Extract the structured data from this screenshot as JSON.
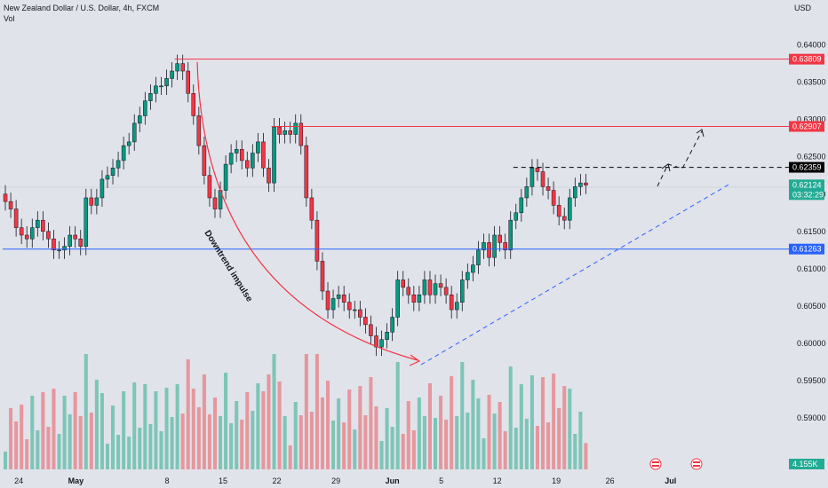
{
  "header": {
    "symbol_title": "New Zealand Dollar / U.S. Dollar, 4h, FXCM",
    "volume_label": "Vol",
    "currency": "USD"
  },
  "annotation": {
    "impulse_text": "Downtrend impulse"
  },
  "price_axis": {
    "min": 0.585,
    "max": 0.6415,
    "ticks": [
      "0.64000",
      "0.63500",
      "0.63000",
      "0.62500",
      "0.62000",
      "0.61500",
      "0.61000",
      "0.60500",
      "0.60000",
      "0.59500",
      "0.59000"
    ]
  },
  "time_axis": {
    "ticks": [
      {
        "label": "24",
        "bar": 3
      },
      {
        "label": "May",
        "bar": 13
      },
      {
        "label": "8",
        "bar": 31
      },
      {
        "label": "15",
        "bar": 41
      },
      {
        "label": "22",
        "bar": 51
      },
      {
        "label": "29",
        "bar": 62
      },
      {
        "label": "Jun",
        "bar": 72
      },
      {
        "label": "5",
        "bar": 82
      },
      {
        "label": "12",
        "bar": 92
      },
      {
        "label": "19",
        "bar": 103
      },
      {
        "label": "26",
        "bar": 113
      },
      {
        "label": "Jul",
        "bar": 124
      }
    ]
  },
  "levels": [
    {
      "name": "resistance-top",
      "value": 0.63809,
      "label": "0.63809",
      "color": "#f23645",
      "from_bar": 32
    },
    {
      "name": "resistance-mid",
      "value": 0.62907,
      "label": "0.62907",
      "color": "#f23645",
      "from_bar": 50
    },
    {
      "name": "target-dashed",
      "value": 0.62359,
      "label": "0.62359",
      "color": "#000000",
      "from_bar": 95,
      "dashed": true
    },
    {
      "name": "support",
      "value": 0.61263,
      "label": "0.61263",
      "color": "#2962ff",
      "from_bar": 0
    }
  ],
  "current": {
    "value": 0.62124,
    "label": "0.62124",
    "countdown": "03:32:29",
    "color": "#22ab94"
  },
  "volume_tag": {
    "label": "4.155K"
  },
  "chart_data": {
    "type": "candlestick",
    "title": "New Zealand Dollar / U.S. Dollar, 4h, FXCM",
    "x_axis_ticks": [
      "24",
      "May",
      "8",
      "15",
      "22",
      "29",
      "Jun",
      "5",
      "12",
      "19",
      "26",
      "Jul"
    ],
    "y_range": [
      0.585,
      0.6415
    ],
    "close": [
      0.619,
      0.618,
      0.6155,
      0.6145,
      0.614,
      0.6155,
      0.6165,
      0.615,
      0.614,
      0.6125,
      0.6125,
      0.613,
      0.6145,
      0.614,
      0.613,
      0.6195,
      0.6185,
      0.6195,
      0.622,
      0.6225,
      0.6235,
      0.6245,
      0.6265,
      0.627,
      0.6295,
      0.6305,
      0.6325,
      0.6335,
      0.6345,
      0.6345,
      0.6355,
      0.6365,
      0.6375,
      0.6365,
      0.6335,
      0.6305,
      0.6265,
      0.6225,
      0.6195,
      0.618,
      0.6205,
      0.624,
      0.6255,
      0.626,
      0.6245,
      0.6235,
      0.6255,
      0.627,
      0.6235,
      0.6215,
      0.629,
      0.628,
      0.6285,
      0.628,
      0.6295,
      0.6265,
      0.6195,
      0.6165,
      0.611,
      0.607,
      0.6045,
      0.606,
      0.6065,
      0.6055,
      0.6045,
      0.6045,
      0.6035,
      0.6025,
      0.601,
      0.5995,
      0.6005,
      0.6015,
      0.6035,
      0.6085,
      0.6075,
      0.6065,
      0.6055,
      0.6065,
      0.6085,
      0.6065,
      0.608,
      0.6075,
      0.6065,
      0.6045,
      0.6055,
      0.6085,
      0.6095,
      0.6105,
      0.6125,
      0.6135,
      0.6115,
      0.6145,
      0.6135,
      0.6125,
      0.6165,
      0.6175,
      0.6195,
      0.621,
      0.6235,
      0.623,
      0.621,
      0.6205,
      0.6185,
      0.617,
      0.6165,
      0.6195,
      0.621,
      0.6215,
      0.6212
    ],
    "annotations": [
      "Downtrend impulse"
    ],
    "levels": [
      0.63809,
      0.62907,
      0.62359,
      0.61263
    ],
    "last_price": 0.62124
  }
}
